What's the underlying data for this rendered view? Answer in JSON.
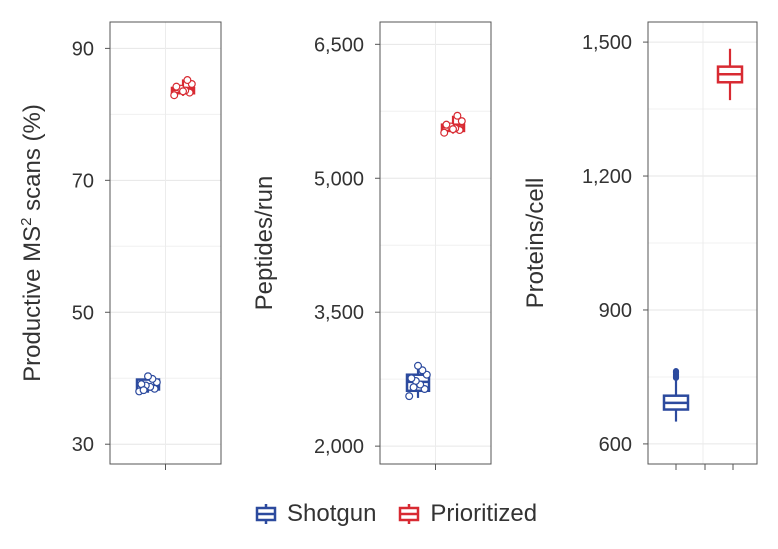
{
  "chart_data": [
    {
      "type": "box",
      "ylabel": "Productive MS² scans (%)",
      "ylabel_main": "Productive MS",
      "ylabel_sup": "2",
      "ylabel_rest": " scans (%)",
      "ylim": [
        27,
        94
      ],
      "yticks": [
        30,
        50,
        70,
        90
      ],
      "ytick_labels": [
        "30",
        "50",
        "70",
        "90"
      ],
      "grid": true,
      "series": [
        {
          "name": "Shotgun",
          "color": "#2c4a9e",
          "box": {
            "q1": 38.3,
            "median": 38.9,
            "q3": 39.8,
            "whisker_low": 37.8,
            "whisker_high": 40.5
          },
          "points": [
            38.0,
            38.4,
            38.7,
            38.9,
            39.1,
            39.4,
            39.9,
            40.3,
            38.2
          ]
        },
        {
          "name": "Prioritized",
          "color": "#d82a32",
          "box": {
            "q1": 83.2,
            "median": 83.7,
            "q3": 84.0,
            "whisker_low": 82.8,
            "whisker_high": 85.3
          },
          "points": [
            82.9,
            83.3,
            83.6,
            83.9,
            84.2,
            84.6,
            85.2,
            83.5
          ]
        }
      ]
    },
    {
      "type": "box",
      "ylabel": "Peptides/run",
      "ylim": [
        1800,
        6750
      ],
      "yticks": [
        2000,
        3500,
        5000,
        6500
      ],
      "ytick_labels": [
        "2,000",
        "3,500",
        "5,000",
        "6,500"
      ],
      "grid": true,
      "series": [
        {
          "name": "Shotgun",
          "color": "#2c4a9e",
          "box": {
            "q1": 2620,
            "median": 2720,
            "q3": 2800,
            "whisker_low": 2540,
            "whisker_high": 2900
          },
          "points": [
            2560,
            2640,
            2690,
            2730,
            2760,
            2800,
            2850,
            2900,
            2660
          ]
        },
        {
          "name": "Prioritized",
          "color": "#d82a32",
          "box": {
            "q1": 5530,
            "median": 5570,
            "q3": 5600,
            "whisker_low": 5500,
            "whisker_high": 5700
          },
          "points": [
            5510,
            5540,
            5560,
            5580,
            5600,
            5640,
            5700,
            5550
          ]
        }
      ]
    },
    {
      "type": "box",
      "ylabel": "Proteins/cell",
      "ylim": [
        555,
        1545
      ],
      "yticks": [
        600,
        900,
        1200,
        1500
      ],
      "ytick_labels": [
        "600",
        "900",
        "1,200",
        "1,500"
      ],
      "grid": true,
      "series": [
        {
          "name": "Shotgun",
          "color": "#2c4a9e",
          "box": {
            "q1": 677,
            "median": 692,
            "q3": 708,
            "whisker_low": 650,
            "whisker_high": 745
          },
          "outliers": [
            748,
            752,
            756,
            760,
            763
          ]
        },
        {
          "name": "Prioritized",
          "color": "#d82a32",
          "box": {
            "q1": 1410,
            "median": 1428,
            "q3": 1445,
            "whisker_low": 1370,
            "whisker_high": 1485
          },
          "outliers": []
        }
      ]
    }
  ],
  "legend": {
    "items": [
      {
        "label": "Shotgun",
        "color": "#2c4a9e"
      },
      {
        "label": "Prioritized",
        "color": "#d82a32"
      }
    ],
    "placement": "bottom"
  }
}
